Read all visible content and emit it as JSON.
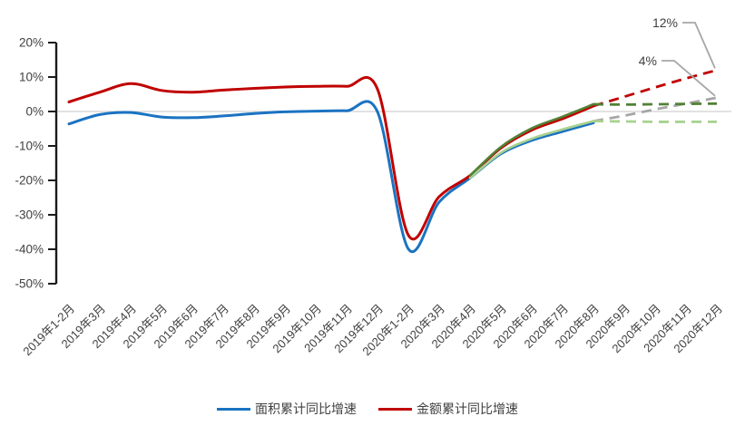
{
  "page": {
    "background": "#FFFFFF"
  },
  "chart_data": {
    "type": "line",
    "title": "",
    "unit": "%",
    "legend_position": "bottom",
    "grid": {
      "zero_line": true,
      "zero_line_color": "#D8D8D8"
    },
    "axis_color": "#1A1A1A",
    "label_color": "#404040",
    "categories": [
      "2019年1-2月",
      "2019年3月",
      "2019年4月",
      "2019年5月",
      "2019年6月",
      "2019年7月",
      "2019年8月",
      "2019年9月",
      "2019年10月",
      "2019年11月",
      "2019年12月",
      "2020年1-2月",
      "2020年3月",
      "2020年4月",
      "2020年5月",
      "2020年6月",
      "2020年7月",
      "2020年8月",
      "2020年9月",
      "2020年10月",
      "2020年11月",
      "2020年12月"
    ],
    "y_axis": {
      "min": -50,
      "max": 20,
      "step": 10,
      "tick_labels": [
        "20%",
        "10%",
        "0%",
        "-10%",
        "-20%",
        "-30%",
        "-40%",
        "-50%"
      ]
    },
    "series": [
      {
        "id": "area-actual",
        "legend": "面积累计同比增速",
        "role": "actual",
        "color": "#1A73C2",
        "dash": false,
        "width": 3,
        "start_index": 0,
        "values": [
          -3.6,
          -0.9,
          -0.3,
          -1.6,
          -1.8,
          -1.3,
          -0.6,
          -0.1,
          0.1,
          0.2,
          -0.1,
          -39.9,
          -26.3,
          -19.3,
          -12.3,
          -8.4,
          -5.8,
          -3.3
        ]
      },
      {
        "id": "amount-actual",
        "legend": "金额累计同比增速",
        "role": "actual",
        "color": "#C00000",
        "dash": false,
        "width": 3,
        "start_index": 0,
        "values": [
          2.8,
          5.6,
          8.1,
          6.1,
          5.6,
          6.2,
          6.7,
          7.1,
          7.3,
          7.3,
          6.5,
          -35.9,
          -24.7,
          -18.6,
          -10.6,
          -5.4,
          -2.1,
          1.6
        ]
      },
      {
        "id": "area-scenario-solid",
        "role": "scenario-fit",
        "color": "#A9D18E",
        "dash": false,
        "width": 2.6,
        "start_index": 13,
        "values": [
          -19.3,
          -12.0,
          -7.9,
          -5.2,
          -2.8
        ]
      },
      {
        "id": "amount-scenario-solid",
        "role": "scenario-fit",
        "color": "#538135",
        "dash": false,
        "width": 2.6,
        "start_index": 13,
        "values": [
          -18.6,
          -10.3,
          -4.9,
          -1.5,
          2.1
        ]
      },
      {
        "id": "amount-forecast-high",
        "role": "forecast",
        "color": "#C00000",
        "dash": true,
        "width": 2.8,
        "start_index": 17,
        "values": [
          1.6,
          4.3,
          7.0,
          9.6,
          12.0
        ]
      },
      {
        "id": "area-forecast-high",
        "role": "forecast",
        "color": "#A6A6A6",
        "dash": true,
        "width": 2.8,
        "start_index": 17,
        "values": [
          -2.8,
          -1.2,
          0.6,
          2.3,
          4.0
        ]
      },
      {
        "id": "amount-forecast-low",
        "role": "forecast",
        "color": "#538135",
        "dash": true,
        "width": 2.8,
        "start_index": 17,
        "values": [
          2.1,
          2.0,
          2.1,
          2.2,
          2.3
        ]
      },
      {
        "id": "area-forecast-low",
        "role": "forecast",
        "color": "#A9D18E",
        "dash": true,
        "width": 2.8,
        "start_index": 17,
        "values": [
          -2.8,
          -2.9,
          -3.0,
          -3.0,
          -3.0
        ]
      }
    ],
    "annotations": [
      {
        "text": "12%",
        "series": "amount-forecast-high"
      },
      {
        "text": "4%",
        "series": "area-forecast-high"
      }
    ],
    "legend": [
      {
        "label": "面积累计同比增速",
        "color": "#1A73C2"
      },
      {
        "label": "金额累计同比增速",
        "color": "#C00000"
      }
    ]
  }
}
